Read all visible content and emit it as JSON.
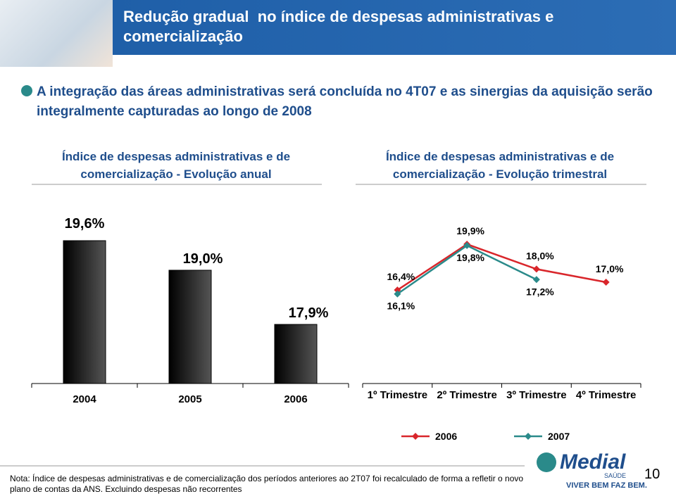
{
  "header": {
    "title": "Redução gradual  no índice de despesas administrativas e comercialização"
  },
  "bullet": "A integração das áreas administrativas será concluída no 4T07 e as sinergias da aquisição serão integralmente capturadas ao longo de 2008",
  "chart_data": [
    {
      "type": "bar",
      "title": "Índice de despesas administrativas e de comercialização - Evolução anual",
      "categories": [
        "2004",
        "2005",
        "2006"
      ],
      "values": [
        19.6,
        19.0,
        17.9
      ],
      "value_labels": [
        "19,6%",
        "19,0%",
        "17,9%"
      ],
      "color": "#555555",
      "ylim": [
        16.7,
        20.0
      ]
    },
    {
      "type": "line",
      "title": "Índice de despesas administrativas e de comercialização - Evolução trimestral",
      "categories": [
        "1º Trimestre",
        "2º Trimestre",
        "3º Trimestre",
        "4º Trimestre"
      ],
      "series": [
        {
          "name": "2006",
          "color": "#d9262b",
          "values": [
            16.4,
            19.9,
            18.0,
            17.0
          ],
          "value_labels": [
            "16,4%",
            "19,9%",
            "18,0%",
            "17,0%"
          ]
        },
        {
          "name": "2007",
          "color": "#2a8a8a",
          "values": [
            16.1,
            19.8,
            17.2,
            null
          ],
          "value_labels": [
            "16,1%",
            "19,8%",
            "17,2%",
            null
          ]
        }
      ],
      "ylim": [
        12,
        22
      ],
      "legend": "bottom"
    }
  ],
  "footer": {
    "note": "Nota: Índice de despesas administrativas e de comercialização dos períodos anteriores ao 2T07 foi recalculado de forma a refletir o novo plano de contas da ANS. Excluindo despesas não recorrentes",
    "logo": "Medial",
    "logo_sub": "SAÚDE",
    "slogan": "VIVER BEM FAZ BEM.",
    "page_number": "10"
  }
}
